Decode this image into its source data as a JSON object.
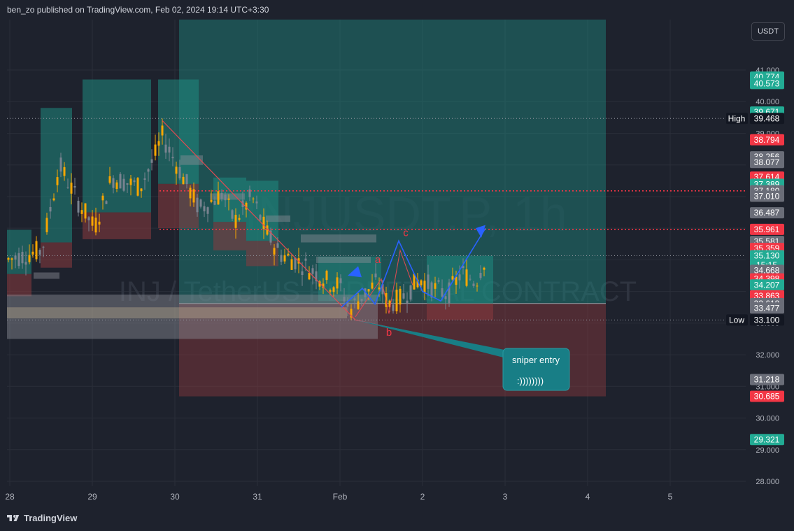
{
  "header": {
    "publisher_line": "ben_zo published on TradingView.com, Feb 02, 2024 19:14 UTC+3:30"
  },
  "currency_button": "USDT",
  "watermark": {
    "symbol": "INJUSDT.P, 1h",
    "description": "INJ / TetherUS PERPETUAL CONTRACT"
  },
  "footer": {
    "brand": "TradingView"
  },
  "colors": {
    "background": "#1e222d",
    "grid": "#2a2e39",
    "up": "#f7a600",
    "down": "#7a8390",
    "long_zone": "#1f8a80",
    "short_zone": "#8b3a3e",
    "trendline": "#e24a52",
    "wave": "#2962ff",
    "callout_bg": "#187e86",
    "price_red": "#f23645",
    "price_green": "#22ab94"
  },
  "chart_data": {
    "type": "candlestick",
    "symbol": "INJUSDT.P",
    "timeframe": "1h",
    "x_ticks": [
      "28",
      "29",
      "30",
      "31",
      "Feb",
      "2",
      "3",
      "4",
      "5"
    ],
    "y_ticks": [
      "41.000",
      "40.000",
      "39.000",
      "38.000",
      "37.000",
      "36.000",
      "35.000",
      "34.000",
      "33.000",
      "32.000",
      "31.000",
      "30.000",
      "29.000",
      "28.000"
    ],
    "ylim": [
      27.6,
      41.8
    ],
    "grid": true,
    "price_labels": [
      {
        "text": "40.774",
        "value": 40.774,
        "kind": "green"
      },
      {
        "text": "40.573",
        "value": 40.573,
        "kind": "green"
      },
      {
        "text": "39.671",
        "value": 39.671,
        "kind": "green"
      },
      {
        "text": "39.468",
        "value": 39.468,
        "kind": "dark",
        "tag": "High"
      },
      {
        "text": "38.794",
        "value": 38.794,
        "kind": "red"
      },
      {
        "text": "38.256",
        "value": 38.256,
        "kind": "gray"
      },
      {
        "text": "38.077",
        "value": 38.077,
        "kind": "gray"
      },
      {
        "text": "37.614",
        "value": 37.614,
        "kind": "red"
      },
      {
        "text": "37.389",
        "value": 37.389,
        "kind": "green"
      },
      {
        "text": "37.180",
        "value": 37.18,
        "kind": "gray"
      },
      {
        "text": "37.010",
        "value": 37.01,
        "kind": "gray"
      },
      {
        "text": "36.487",
        "value": 36.487,
        "kind": "gray"
      },
      {
        "text": "35.961",
        "value": 35.961,
        "kind": "red"
      },
      {
        "text": "35.581",
        "value": 35.581,
        "kind": "gray"
      },
      {
        "text": "35.359",
        "value": 35.359,
        "kind": "red"
      },
      {
        "text": "35.130",
        "value": 35.13,
        "kind": "green"
      },
      {
        "text": "15:15",
        "value": 34.83,
        "kind": "green"
      },
      {
        "text": "34.668",
        "value": 34.668,
        "kind": "gray"
      },
      {
        "text": "34.398",
        "value": 34.398,
        "kind": "red"
      },
      {
        "text": "34.207",
        "value": 34.207,
        "kind": "green"
      },
      {
        "text": "33.863",
        "value": 33.863,
        "kind": "red"
      },
      {
        "text": "33.618",
        "value": 33.618,
        "kind": "gray"
      },
      {
        "text": "33.477",
        "value": 33.477,
        "kind": "gray"
      },
      {
        "text": "33.100",
        "value": 33.1,
        "kind": "dark",
        "tag": "Low"
      },
      {
        "text": "31.218",
        "value": 31.218,
        "kind": "gray"
      },
      {
        "text": "30.685",
        "value": 30.685,
        "kind": "red"
      },
      {
        "text": "29.321",
        "value": 29.321,
        "kind": "green"
      }
    ],
    "horizontal_levels": [
      {
        "value": 39.468,
        "style": "dotted-white"
      },
      {
        "value": 37.18,
        "style": "dotted-red"
      },
      {
        "value": 35.961,
        "style": "dotted-red"
      },
      {
        "value": 35.13,
        "style": "dotted-white"
      },
      {
        "value": 33.1,
        "style": "dotted-white"
      }
    ],
    "wave_labels": [
      "a",
      "b",
      "c"
    ],
    "callout": {
      "line1": "sniper entry",
      "line2": ":))))))))"
    }
  }
}
